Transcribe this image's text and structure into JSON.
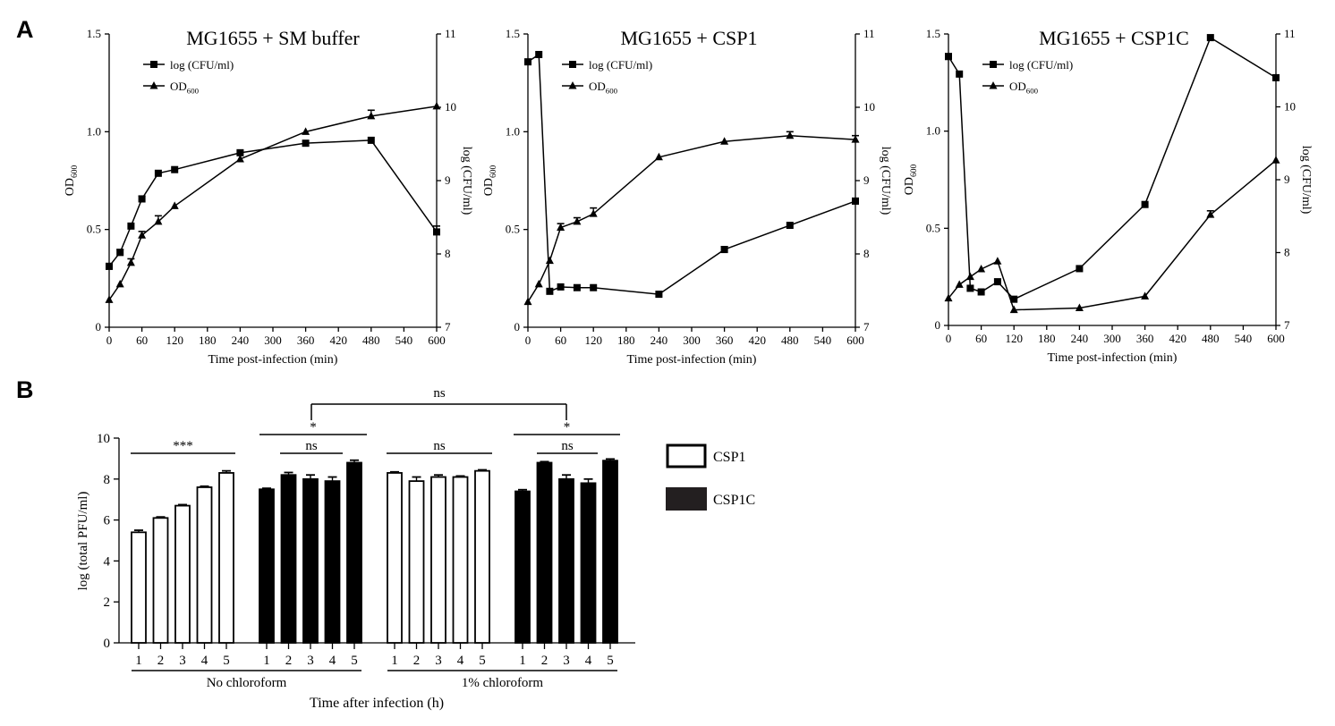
{
  "panels": {
    "a": "A",
    "b": "B"
  },
  "colors": {
    "ink": "#000000",
    "csp1_fill": "#ffffff",
    "csp1c_fill": "#000000",
    "legend_csp1c_fill": "#231f20"
  },
  "chart_data": [
    {
      "type": "line",
      "title": "MG1655 + SM buffer",
      "xlabel": "Time post-infection (min)",
      "ylabel_left": "OD600",
      "ylabel_right": "log (CFU/ml)",
      "xlim": [
        0,
        600
      ],
      "xticks": [
        0,
        60,
        120,
        180,
        240,
        300,
        360,
        420,
        480,
        540,
        600
      ],
      "ylim_left": [
        0,
        1.5
      ],
      "yticks_left": [
        "0",
        "0.5",
        "1.0",
        "1.5"
      ],
      "ylim_right": [
        7,
        11
      ],
      "yticks_right": [
        "7",
        "8",
        "9",
        "10",
        "11"
      ],
      "legend": {
        "position": "top-left",
        "entries": [
          "log (CFU/ml)",
          "OD600"
        ]
      },
      "series": [
        {
          "name": "log (CFU/ml)",
          "axis": "right",
          "marker": "square",
          "x": [
            0,
            20,
            40,
            60,
            90,
            120,
            240,
            360,
            480,
            600
          ],
          "y": [
            7.83,
            8.02,
            8.38,
            8.75,
            9.1,
            9.15,
            9.38,
            9.51,
            9.55,
            8.3
          ],
          "err": [
            0.04,
            0.04,
            0,
            0.04,
            0,
            0,
            0,
            0,
            0,
            0.08
          ]
        },
        {
          "name": "OD600",
          "axis": "left",
          "marker": "triangle",
          "x": [
            0,
            20,
            40,
            60,
            90,
            120,
            240,
            360,
            480,
            600
          ],
          "y": [
            0.14,
            0.22,
            0.33,
            0.47,
            0.54,
            0.62,
            0.86,
            1.0,
            1.08,
            1.13
          ],
          "err": [
            0,
            0,
            0.02,
            0.02,
            0.03,
            0,
            0,
            0,
            0.03,
            0
          ]
        }
      ]
    },
    {
      "type": "line",
      "title": "MG1655 + CSP1",
      "xlabel": "Time post-infection (min)",
      "ylabel_left": "OD600",
      "ylabel_right": "log (CFU/ml)",
      "xlim": [
        0,
        600
      ],
      "xticks": [
        0,
        60,
        120,
        180,
        240,
        300,
        360,
        420,
        480,
        540,
        600
      ],
      "ylim_left": [
        0,
        1.5
      ],
      "yticks_left": [
        "0",
        "0.5",
        "1.0",
        "1.5"
      ],
      "ylim_right": [
        7,
        11
      ],
      "yticks_right": [
        "7",
        "8",
        "9",
        "10",
        "11"
      ],
      "legend": {
        "position": "top-left",
        "entries": [
          "log (CFU/ml)",
          "OD600"
        ]
      },
      "series": [
        {
          "name": "log (CFU/ml)",
          "axis": "right",
          "marker": "square",
          "x": [
            0,
            20,
            40,
            60,
            90,
            120,
            240,
            360,
            480,
            600
          ],
          "y": [
            10.62,
            10.72,
            7.49,
            7.55,
            7.54,
            7.54,
            7.45,
            8.06,
            8.39,
            8.72
          ],
          "err": [
            0,
            0,
            0,
            0,
            0,
            0,
            0,
            0.04,
            0,
            0.04
          ]
        },
        {
          "name": "OD600",
          "axis": "left",
          "marker": "triangle",
          "x": [
            0,
            20,
            40,
            60,
            90,
            120,
            240,
            360,
            480,
            600
          ],
          "y": [
            0.13,
            0.22,
            0.34,
            0.51,
            0.54,
            0.58,
            0.87,
            0.95,
            0.98,
            0.96
          ],
          "err": [
            0,
            0,
            0,
            0.02,
            0.02,
            0.03,
            0,
            0,
            0.02,
            0.02
          ]
        }
      ]
    },
    {
      "type": "line",
      "title": "MG1655 + CSP1C",
      "xlabel": "Time post-infection (min)",
      "ylabel_left": "OD600",
      "ylabel_right": "log (CFU/ml)",
      "xlim": [
        0,
        600
      ],
      "xticks": [
        0,
        60,
        120,
        180,
        240,
        300,
        360,
        420,
        480,
        540,
        600
      ],
      "ylim_left": [
        0,
        1.5
      ],
      "yticks_left": [
        "0",
        "0.5",
        "1.0",
        "1.5"
      ],
      "ylim_right": [
        7,
        11
      ],
      "yticks_right": [
        "7",
        "8",
        "9",
        "10",
        "11"
      ],
      "legend": {
        "position": "top-left",
        "entries": [
          "log (CFU/ml)",
          "OD600"
        ]
      },
      "series": [
        {
          "name": "log (CFU/ml)",
          "axis": "right",
          "marker": "square",
          "x": [
            0,
            20,
            40,
            60,
            90,
            120,
            240,
            360,
            480,
            600
          ],
          "y": [
            10.69,
            10.45,
            7.51,
            7.46,
            7.6,
            7.36,
            7.78,
            8.66,
            10.95,
            10.4
          ],
          "err": [
            0.04,
            0,
            0,
            0,
            0,
            0,
            0,
            0,
            0,
            0
          ]
        },
        {
          "name": "OD600",
          "axis": "left",
          "marker": "triangle",
          "x": [
            0,
            20,
            40,
            60,
            90,
            120,
            240,
            360,
            480,
            600
          ],
          "y": [
            0.14,
            0.21,
            0.25,
            0.29,
            0.33,
            0.08,
            0.09,
            0.15,
            0.57,
            0.85
          ],
          "err": [
            0,
            0,
            0,
            0,
            0,
            0,
            0,
            0,
            0.02,
            0
          ]
        }
      ]
    },
    {
      "type": "bar",
      "title": "",
      "xlabel": "Time after infection (h)",
      "ylabel": "log (total PFU/ml)",
      "ylim": [
        0,
        10
      ],
      "yticks": [
        "0",
        "2",
        "4",
        "6",
        "8",
        "10"
      ],
      "categories": [
        "1",
        "2",
        "3",
        "4",
        "5"
      ],
      "groups": [
        "No chloroform",
        "1% chloroform"
      ],
      "legend": {
        "position": "right",
        "entries": [
          "CSP1",
          "CSP1C"
        ]
      },
      "series": [
        {
          "name": "CSP1",
          "group": "No chloroform",
          "values": [
            5.4,
            6.1,
            6.7,
            7.6,
            8.3
          ],
          "err": [
            0.1,
            0.05,
            0.05,
            0.05,
            0.1
          ]
        },
        {
          "name": "CSP1C",
          "group": "No chloroform",
          "values": [
            7.5,
            8.2,
            8.0,
            7.9,
            8.8
          ],
          "err": [
            0.05,
            0.12,
            0.2,
            0.2,
            0.12
          ]
        },
        {
          "name": "CSP1",
          "group": "1% chloroform",
          "values": [
            8.3,
            7.9,
            8.1,
            8.1,
            8.4
          ],
          "err": [
            0.05,
            0.2,
            0.1,
            0.05,
            0.05
          ]
        },
        {
          "name": "CSP1C",
          "group": "1% chloroform",
          "values": [
            7.4,
            8.8,
            8.0,
            7.8,
            8.9
          ],
          "err": [
            0.08,
            0.05,
            0.2,
            0.2,
            0.08
          ]
        }
      ],
      "annotations": [
        "***",
        "ns",
        "*",
        "ns",
        "ns",
        "*",
        "ns"
      ]
    }
  ]
}
